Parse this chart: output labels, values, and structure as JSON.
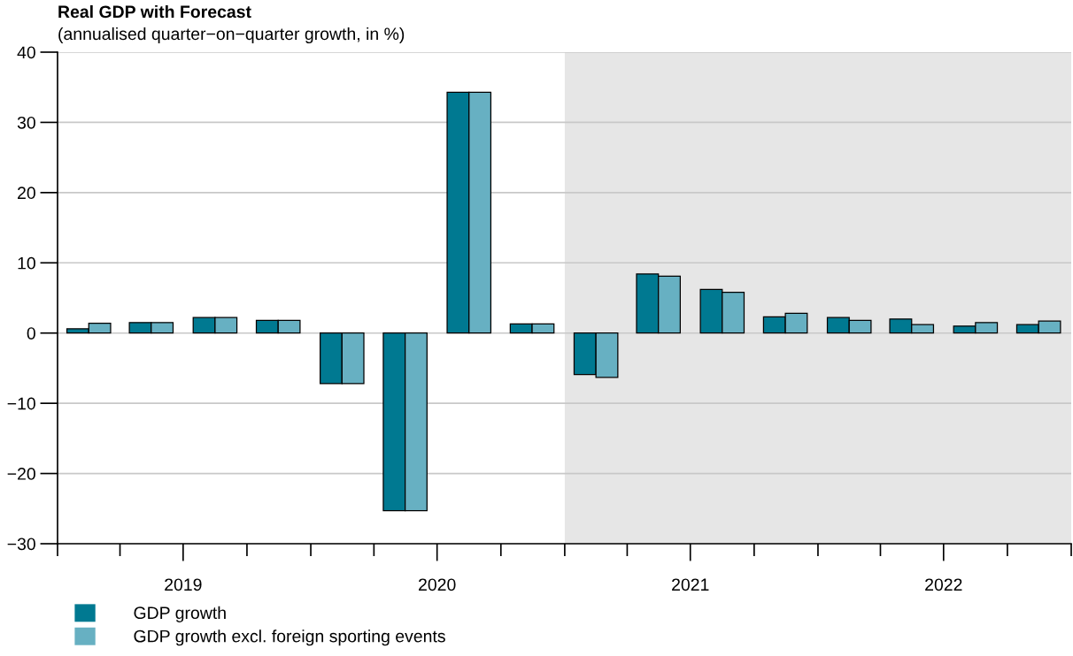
{
  "chart_data": {
    "type": "bar",
    "title": "Real GDP with Forecast",
    "subtitle": "(annualised quarter−on−quarter growth, in %)",
    "x": [
      "2019-02-15",
      "2019-05-16",
      "2019-08-16",
      "2019-11-15",
      "2020-02-15",
      "2020-05-16",
      "2020-08-16",
      "2020-11-15",
      "2021-02-15",
      "2021-05-16",
      "2021-08-16",
      "2021-11-15",
      "2022-02-15",
      "2022-05-16",
      "2022-08-16",
      "2022-11-15"
    ],
    "series": [
      {
        "name": "GDP growth",
        "color": "#007991",
        "values": [
          0.6,
          1.5,
          2.2,
          1.8,
          -7.2,
          -25.3,
          34.3,
          1.3,
          -5.9,
          8.4,
          6.2,
          2.3,
          2.2,
          2.0,
          1.0,
          1.2
        ]
      },
      {
        "name": "GDP growth excl. foreign sporting events",
        "color": "#67b0c2",
        "values": [
          1.4,
          1.5,
          2.2,
          1.8,
          -7.2,
          -25.3,
          34.3,
          1.3,
          -6.3,
          8.1,
          5.8,
          2.8,
          1.8,
          1.2,
          1.5,
          1.7
        ]
      }
    ],
    "ylim": [
      -30,
      40
    ],
    "yticks": [
      -30,
      -20,
      -10,
      0,
      10,
      20,
      30,
      40
    ],
    "xlim": [
      "2019-01-01",
      "2023-01-01"
    ],
    "xticks": [
      {
        "value": "2019-01-01",
        "label": null
      },
      {
        "value": "2019-04-01",
        "label": null
      },
      {
        "value": "2019-07-01",
        "label": "2019"
      },
      {
        "value": "2019-10-01",
        "label": null
      },
      {
        "value": "2020-01-01",
        "label": null
      },
      {
        "value": "2020-04-01",
        "label": null
      },
      {
        "value": "2020-07-01",
        "label": "2020"
      },
      {
        "value": "2020-10-01",
        "label": null
      },
      {
        "value": "2021-01-01",
        "label": null
      },
      {
        "value": "2021-04-01",
        "label": null
      },
      {
        "value": "2021-07-01",
        "label": "2021"
      },
      {
        "value": "2021-10-01",
        "label": null
      },
      {
        "value": "2022-01-01",
        "label": null
      },
      {
        "value": "2022-04-01",
        "label": null
      },
      {
        "value": "2022-07-01",
        "label": "2022"
      },
      {
        "value": "2022-10-01",
        "label": null
      },
      {
        "value": "2023-01-01",
        "label": null
      }
    ],
    "bands": [
      {
        "axis": "x",
        "from": "2021-01-01",
        "to": "2023-01-01",
        "color": "#e6e6e6"
      }
    ],
    "grid": "y",
    "legend": "bottom left"
  }
}
